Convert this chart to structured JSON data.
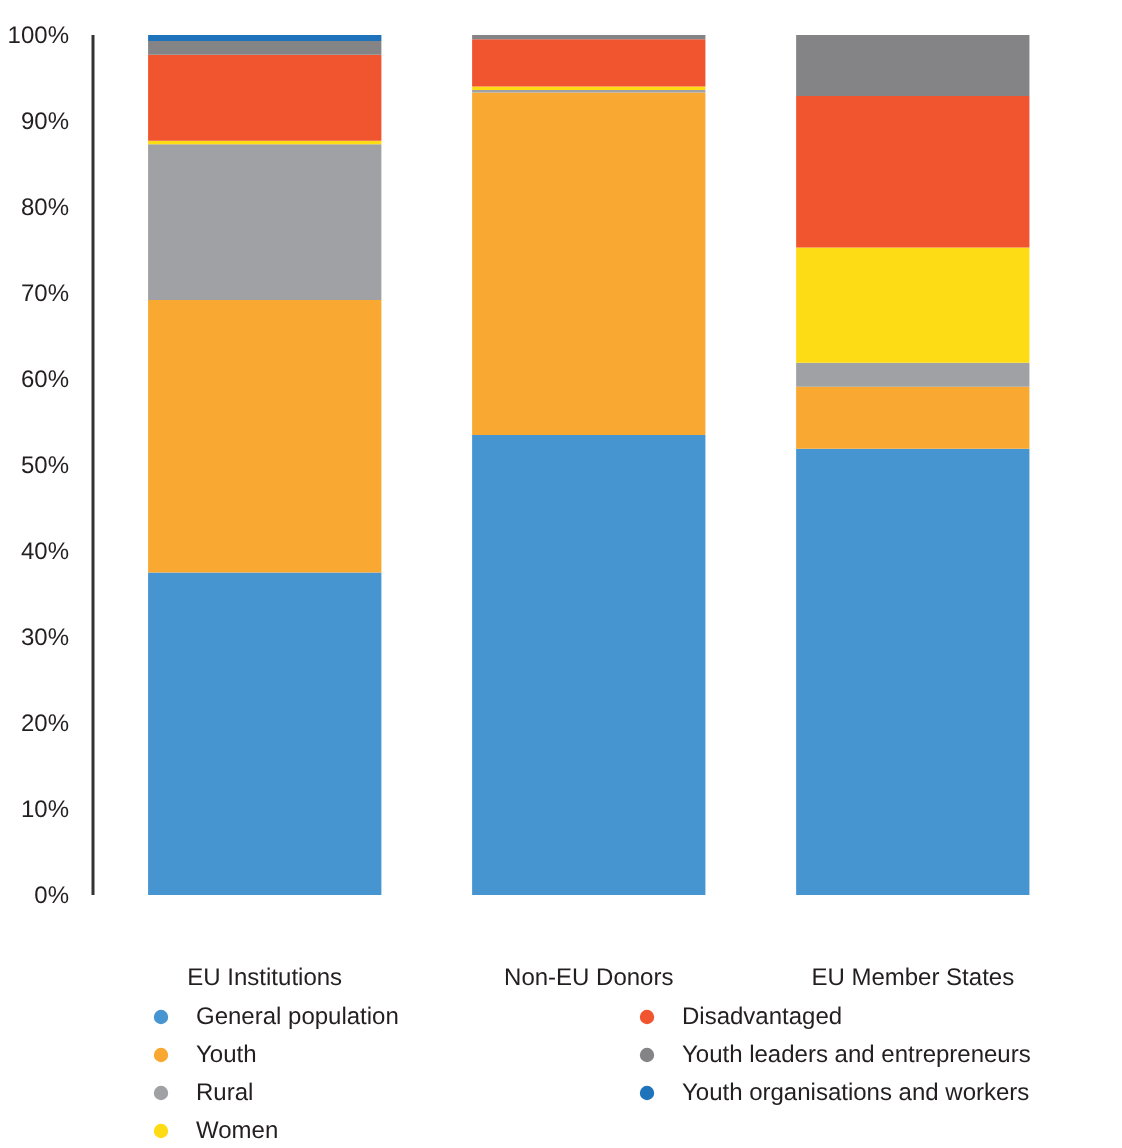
{
  "chart_data": {
    "type": "bar",
    "stacked": true,
    "categories": [
      "EU Institutions",
      "Non-EU Donors",
      "EU Member States"
    ],
    "series": [
      {
        "name": "General population",
        "color": "#4695d1",
        "values": [
          37.5,
          53.5,
          51.9
        ]
      },
      {
        "name": "Youth",
        "color": "#f9a932",
        "values": [
          31.7,
          39.8,
          7.2
        ]
      },
      {
        "name": "Rural",
        "color": "#a0a1a5",
        "values": [
          18.1,
          0.3,
          2.8
        ]
      },
      {
        "name": "Women",
        "color": "#fedc15",
        "values": [
          0.4,
          0.4,
          13.4
        ]
      },
      {
        "name": "Disadvantaged",
        "color": "#f05530",
        "values": [
          10.0,
          5.5,
          17.6
        ]
      },
      {
        "name": "Youth leaders and entrepreneurs",
        "color": "#848487",
        "values": [
          1.6,
          0.5,
          7.1
        ]
      },
      {
        "name": "Youth organisations and workers",
        "color": "#1f73bb",
        "values": [
          0.7,
          0.0,
          0.0
        ]
      }
    ],
    "ylim": [
      0,
      100
    ],
    "yticks": [
      {
        "value": 0,
        "label": "0%"
      },
      {
        "value": 10,
        "label": "10%"
      },
      {
        "value": 20,
        "label": "20%"
      },
      {
        "value": 30,
        "label": "30%"
      },
      {
        "value": 40,
        "label": "40%"
      },
      {
        "value": 50,
        "label": "50%"
      },
      {
        "value": 60,
        "label": "60%"
      },
      {
        "value": 70,
        "label": "70%"
      },
      {
        "value": 80,
        "label": "80%"
      },
      {
        "value": 90,
        "label": "90%"
      },
      {
        "value": 100,
        "label": "100%"
      }
    ],
    "grid": false,
    "legend": "bottom"
  }
}
